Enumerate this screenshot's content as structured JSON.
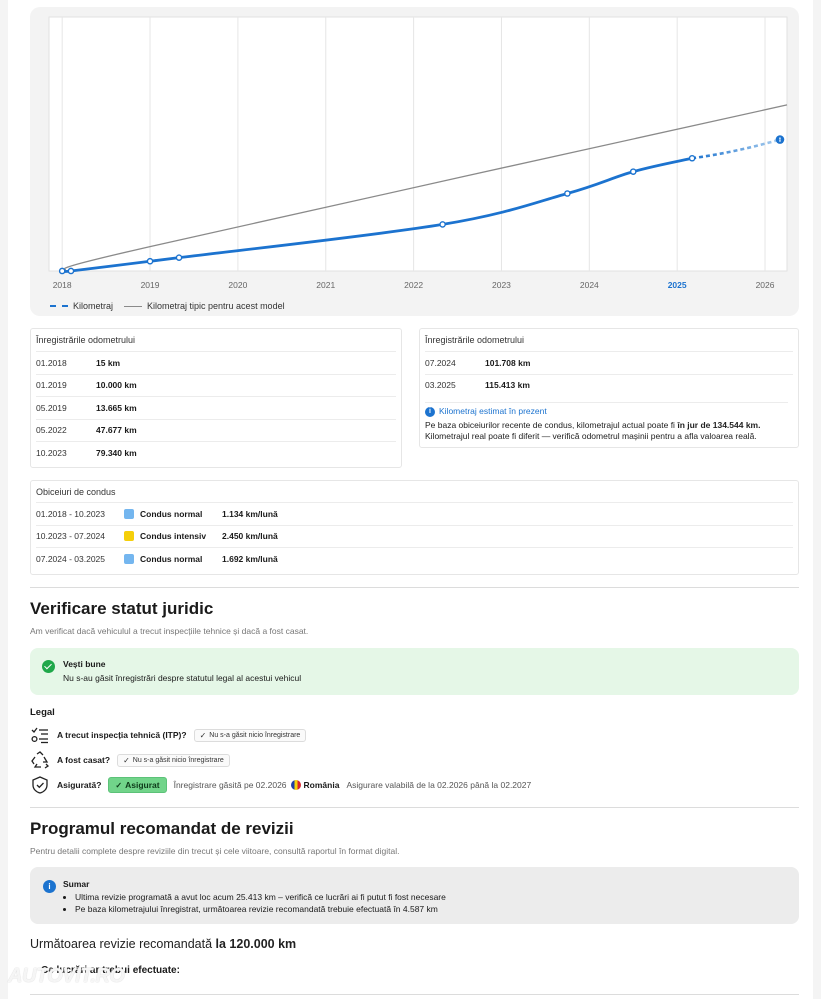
{
  "chart": {
    "legend": {
      "series_label": "Kilometraj",
      "typical_label": "Kilometraj tipic pentru acest model"
    }
  },
  "chart_data": {
    "type": "line",
    "title": "",
    "xlabel": "",
    "ylabel": "",
    "x_ticks": [
      "2018",
      "2019",
      "2020",
      "2021",
      "2022",
      "2023",
      "2024",
      "2025",
      "2026"
    ],
    "highlighted_tick": "2025",
    "series": [
      {
        "name": "Kilometraj",
        "color": "#1c73cf",
        "points": [
          {
            "x": 2018.0,
            "y": 15
          },
          {
            "x": 2018.1,
            "y": 15
          },
          {
            "x": 2019.0,
            "y": 10000
          },
          {
            "x": 2019.33,
            "y": 13665
          },
          {
            "x": 2022.33,
            "y": 47677
          },
          {
            "x": 2023.75,
            "y": 79340
          },
          {
            "x": 2024.5,
            "y": 101708
          },
          {
            "x": 2025.17,
            "y": 115413
          }
        ],
        "estimate": {
          "x": 2026.17,
          "y": 134544
        }
      },
      {
        "name": "Kilometraj tipic pentru acest model",
        "color": "#8a8a8a",
        "points": [
          {
            "x": 2018.0,
            "y": 0
          },
          {
            "x": 2019.0,
            "y": 25000
          },
          {
            "x": 2026.25,
            "y": 170000
          }
        ]
      }
    ],
    "xlim": [
      2017.85,
      2026.25
    ],
    "ylim": [
      0,
      260000
    ],
    "grid": true,
    "legend_position": "bottom-left"
  },
  "odometer_left": {
    "title": "Înregistrările odometrului",
    "rows": [
      {
        "date": "01.2018",
        "km": "15 km"
      },
      {
        "date": "01.2019",
        "km": "10.000 km"
      },
      {
        "date": "05.2019",
        "km": "13.665 km"
      },
      {
        "date": "05.2022",
        "km": "47.677 km"
      },
      {
        "date": "10.2023",
        "km": "79.340 km"
      }
    ]
  },
  "odometer_right": {
    "title": "Înregistrările odometrului",
    "rows": [
      {
        "date": "07.2024",
        "km": "101.708 km"
      },
      {
        "date": "03.2025",
        "km": "115.413 km"
      }
    ],
    "estimate_link": "Kilometraj estimat în prezent",
    "estimate_text_1": "Pe baza obiceiurilor recente de condus, kilometrajul actual poate fi",
    "estimate_value": "în jur de 134.544 km.",
    "estimate_text_2": "Kilometrajul real poate fi diferit — verifică odometrul mașinii pentru a afla valoarea reală."
  },
  "habits": {
    "title": "Obiceiuri de condus",
    "rows": [
      {
        "period": "01.2018 - 10.2023",
        "type": "Condus normal",
        "rate": "1.134 km/lună",
        "color": "#74b6ef"
      },
      {
        "period": "10.2023 - 07.2024",
        "type": "Condus intensiv",
        "rate": "2.450 km/lună",
        "color": "#f5cf0a"
      },
      {
        "period": "07.2024 - 03.2025",
        "type": "Condus normal",
        "rate": "1.692 km/lună",
        "color": "#74b6ef"
      }
    ]
  },
  "legal_status": {
    "heading": "Verificare statut juridic",
    "subtitle": "Am verificat dacă vehiculul a trecut inspecțiile tehnice și dacă a fost casat.",
    "good_news_title": "Vești bune",
    "good_news_text": "Nu s-au găsit înregistrări despre statutul legal al acestui vehicul",
    "legal_label": "Legal",
    "itp_question": "A trecut inspecția tehnică (ITP)?",
    "itp_answer": "Nu s-a găsit nicio înregistrare",
    "scrapped_question": "A fost casat?",
    "scrapped_answer": "Nu s-a găsit nicio înregistrare",
    "insured_question": "Asigurată?",
    "insured_answer": "Asigurat",
    "insured_found": "Înregistrare găsită pe 02.2026",
    "insured_country": "România",
    "insured_validity": "Asigurare valabilă de la 02.2026 până la 02.2027"
  },
  "service": {
    "heading": "Programul recomandat de revizii",
    "subtitle": "Pentru detalii complete despre reviziile din trecut și cele viitoare, consultă raportul în format digital.",
    "summary_title": "Sumar",
    "summary_items": [
      "Ultima revizie programată a avut loc acum 25.413 km – verifică ce lucrări ai fi putut fi fost necesare",
      "Pe baza kilometrajului înregistrat, următoarea revizie recomandată trebuie efectuată în 4.587 km"
    ],
    "next_prefix": "Următoarea revizie recomandată",
    "next_value": "la 120.000 km",
    "works_title": "Ce lucrări ar trebui efectuate:"
  },
  "watermark": "AUTOVIT.RO"
}
